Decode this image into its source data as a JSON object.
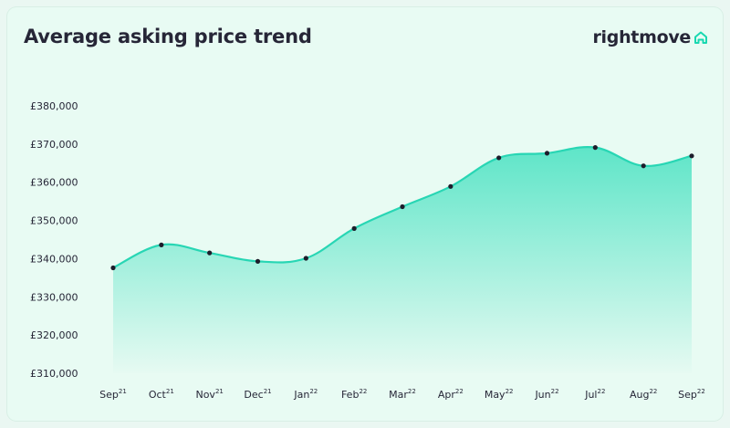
{
  "header": {
    "title": "Average asking price trend",
    "brand": "rightmove",
    "brand_icon": "house-roof-icon"
  },
  "colors": {
    "line": "#28d6b4",
    "fill_top": "#5ee5c8",
    "fill_bottom": "#e6faf2",
    "point": "#1d1d2b",
    "brand_accent": "#18d8b0",
    "background": "#e8fbf3"
  },
  "chart_data": {
    "type": "area",
    "title": "Average asking price trend",
    "xlabel": "",
    "ylabel": "",
    "categories": [
      {
        "month": "Sep",
        "year": "21"
      },
      {
        "month": "Oct",
        "year": "21"
      },
      {
        "month": "Nov",
        "year": "21"
      },
      {
        "month": "Dec",
        "year": "21"
      },
      {
        "month": "Jan",
        "year": "22"
      },
      {
        "month": "Feb",
        "year": "22"
      },
      {
        "month": "Mar",
        "year": "22"
      },
      {
        "month": "Apr",
        "year": "22"
      },
      {
        "month": "May",
        "year": "22"
      },
      {
        "month": "Jun",
        "year": "22"
      },
      {
        "month": "Jul",
        "year": "22"
      },
      {
        "month": "Aug",
        "year": "22"
      },
      {
        "month": "Sep",
        "year": "22"
      }
    ],
    "values": [
      337600,
      343600,
      341500,
      339300,
      340100,
      347900,
      353600,
      358900,
      366400,
      367600,
      369100,
      364300,
      366900
    ],
    "ylim": [
      310000,
      380000
    ],
    "yticks": [
      {
        "value": 380000,
        "label": "£380,000"
      },
      {
        "value": 370000,
        "label": "£370,000"
      },
      {
        "value": 360000,
        "label": "£360,000"
      },
      {
        "value": 350000,
        "label": "£350,000"
      },
      {
        "value": 340000,
        "label": "£340,000"
      },
      {
        "value": 330000,
        "label": "£330,000"
      },
      {
        "value": 320000,
        "label": "£320,000"
      },
      {
        "value": 310000,
        "label": "£310,000"
      }
    ],
    "grid": false,
    "legend": "none",
    "markers": true
  }
}
